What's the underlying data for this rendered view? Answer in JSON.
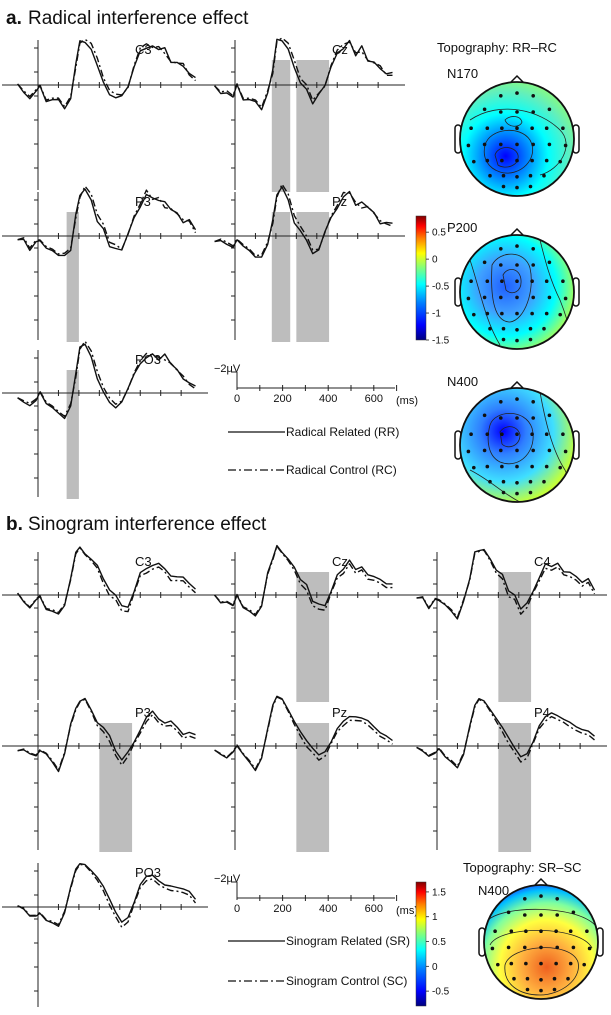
{
  "chart_data": [
    {
      "type": "line",
      "section_letter": "a.",
      "section_title": "Radical interference effect",
      "panels": [
        {
          "electrode": "C3",
          "shaded": []
        },
        {
          "electrode": "Cz",
          "shaded": [
            [
              180,
              270
            ],
            [
              300,
              460
            ]
          ]
        },
        {
          "electrode": "P3",
          "shaded": [
            [
              140,
              200
            ]
          ]
        },
        {
          "electrode": "Pz",
          "shaded": [
            [
              180,
              270
            ],
            [
              300,
              460
            ]
          ]
        },
        {
          "electrode": "PO3",
          "shaded": [
            [
              140,
              200
            ]
          ]
        }
      ],
      "series": [
        {
          "name": "Radical Related (RR)",
          "style": "solid",
          "x": [
            -100,
            -70,
            -40,
            -10,
            10,
            40,
            70,
            100,
            130,
            160,
            185,
            205,
            230,
            260,
            290,
            320,
            350,
            380,
            410,
            440,
            470,
            500,
            530,
            560,
            590,
            620,
            650,
            680,
            710,
            740,
            770
          ],
          "y": [
            -0.3,
            -0.8,
            -1.5,
            -1.2,
            -0.3,
            -1.8,
            -2.0,
            -2.4,
            -3.0,
            -1.5,
            2.5,
            5.8,
            6.2,
            4.8,
            2.2,
            0.6,
            -1.0,
            -2.1,
            -1.6,
            0.2,
            2.4,
            4.2,
            5.2,
            5.6,
            4.4,
            4.9,
            3.5,
            3.0,
            2.1,
            1.8,
            1.3
          ]
        },
        {
          "name": "Radical Control (RC)",
          "style": "dashdot",
          "x": [
            -100,
            -70,
            -40,
            -10,
            10,
            40,
            70,
            100,
            130,
            160,
            185,
            205,
            230,
            260,
            290,
            320,
            350,
            380,
            410,
            440,
            470,
            500,
            530,
            560,
            590,
            620,
            650,
            680,
            710,
            740,
            770
          ],
          "y": [
            -0.3,
            -0.6,
            -1.2,
            -1.0,
            -0.2,
            -1.6,
            -1.8,
            -2.2,
            -2.7,
            -1.2,
            2.0,
            5.5,
            6.6,
            5.6,
            3.2,
            1.2,
            -0.4,
            -1.6,
            -1.5,
            0.1,
            2.6,
            4.6,
            5.8,
            5.4,
            4.8,
            4.1,
            3.6,
            2.9,
            2.5,
            1.6,
            0.9
          ]
        }
      ],
      "axis": {
        "x_ticks": [
          0,
          200,
          400,
          600
        ],
        "x_unit": "(ms)",
        "y_scale_label": "−2μV",
        "y_negative_up": true
      },
      "topography": {
        "title": "Topography: RR–RC",
        "components": [
          "N170",
          "P200",
          "N400"
        ],
        "colorbar_ticks": [
          "0.5",
          "0",
          "-0.5",
          "-1",
          "-1.5"
        ],
        "colorbar_range": [
          -1.5,
          0.8
        ]
      }
    },
    {
      "type": "line",
      "section_letter": "b.",
      "section_title": "Sinogram interference effect",
      "panels": [
        {
          "electrode": "C3",
          "shaded": []
        },
        {
          "electrode": "Cz",
          "shaded": [
            [
              300,
              460
            ]
          ]
        },
        {
          "electrode": "C4",
          "shaded": [
            [
              300,
              460
            ]
          ]
        },
        {
          "electrode": "P3",
          "shaded": [
            [
              300,
              460
            ]
          ]
        },
        {
          "electrode": "Pz",
          "shaded": [
            [
              300,
              460
            ]
          ]
        },
        {
          "electrode": "P4",
          "shaded": [
            [
              300,
              460
            ]
          ]
        },
        {
          "electrode": "PO3",
          "shaded": []
        }
      ],
      "series": [
        {
          "name": "Sinogram Related (SR)",
          "style": "solid",
          "x": [
            -100,
            -70,
            -40,
            -10,
            10,
            40,
            70,
            100,
            130,
            160,
            185,
            205,
            230,
            260,
            290,
            320,
            350,
            380,
            410,
            440,
            470,
            500,
            530,
            560,
            590,
            620,
            650,
            680,
            710,
            740,
            770
          ],
          "y": [
            -0.2,
            -0.7,
            -1.4,
            -1.0,
            -0.4,
            -1.5,
            -2.2,
            -3.0,
            -1.2,
            2.6,
            5.4,
            6.3,
            6.0,
            4.8,
            3.6,
            2.4,
            1.0,
            -0.4,
            -1.6,
            -1.2,
            0.4,
            2.6,
            3.8,
            4.3,
            3.9,
            3.4,
            3.0,
            2.4,
            2.0,
            1.8,
            1.1
          ]
        },
        {
          "name": "Sinogram Control (SC)",
          "style": "dashdot",
          "x": [
            -100,
            -70,
            -40,
            -10,
            10,
            40,
            70,
            100,
            130,
            160,
            185,
            205,
            230,
            260,
            290,
            320,
            350,
            380,
            410,
            440,
            470,
            500,
            530,
            560,
            590,
            620,
            650,
            680,
            710,
            740,
            770
          ],
          "y": [
            -0.2,
            -0.6,
            -1.3,
            -0.9,
            -0.3,
            -1.4,
            -2.0,
            -2.8,
            -1.0,
            2.4,
            5.2,
            6.2,
            5.9,
            4.6,
            3.2,
            1.8,
            0.2,
            -1.0,
            -2.3,
            -1.8,
            0.2,
            2.2,
            3.2,
            3.8,
            3.4,
            3.0,
            2.4,
            1.9,
            1.5,
            1.3,
            0.6
          ]
        }
      ],
      "axis": {
        "x_ticks": [
          0,
          200,
          400,
          600
        ],
        "x_unit": "(ms)",
        "y_scale_label": "−2μV",
        "y_negative_up": true
      },
      "topography": {
        "title": "Topography: SR–SC",
        "components": [
          "N400"
        ],
        "colorbar_ticks": [
          "1.5",
          "1",
          "0.5",
          "0",
          "-0.5"
        ],
        "colorbar_range": [
          -0.8,
          1.7
        ]
      }
    }
  ],
  "colors": {
    "trace": "#111111",
    "shade": "#bdbdbd",
    "axis": "#222222"
  },
  "colormap": [
    "#00007f",
    "#0000ff",
    "#007fff",
    "#00ffff",
    "#7fff7f",
    "#ffff00",
    "#ff7f00",
    "#ff0000",
    "#7f0000"
  ]
}
